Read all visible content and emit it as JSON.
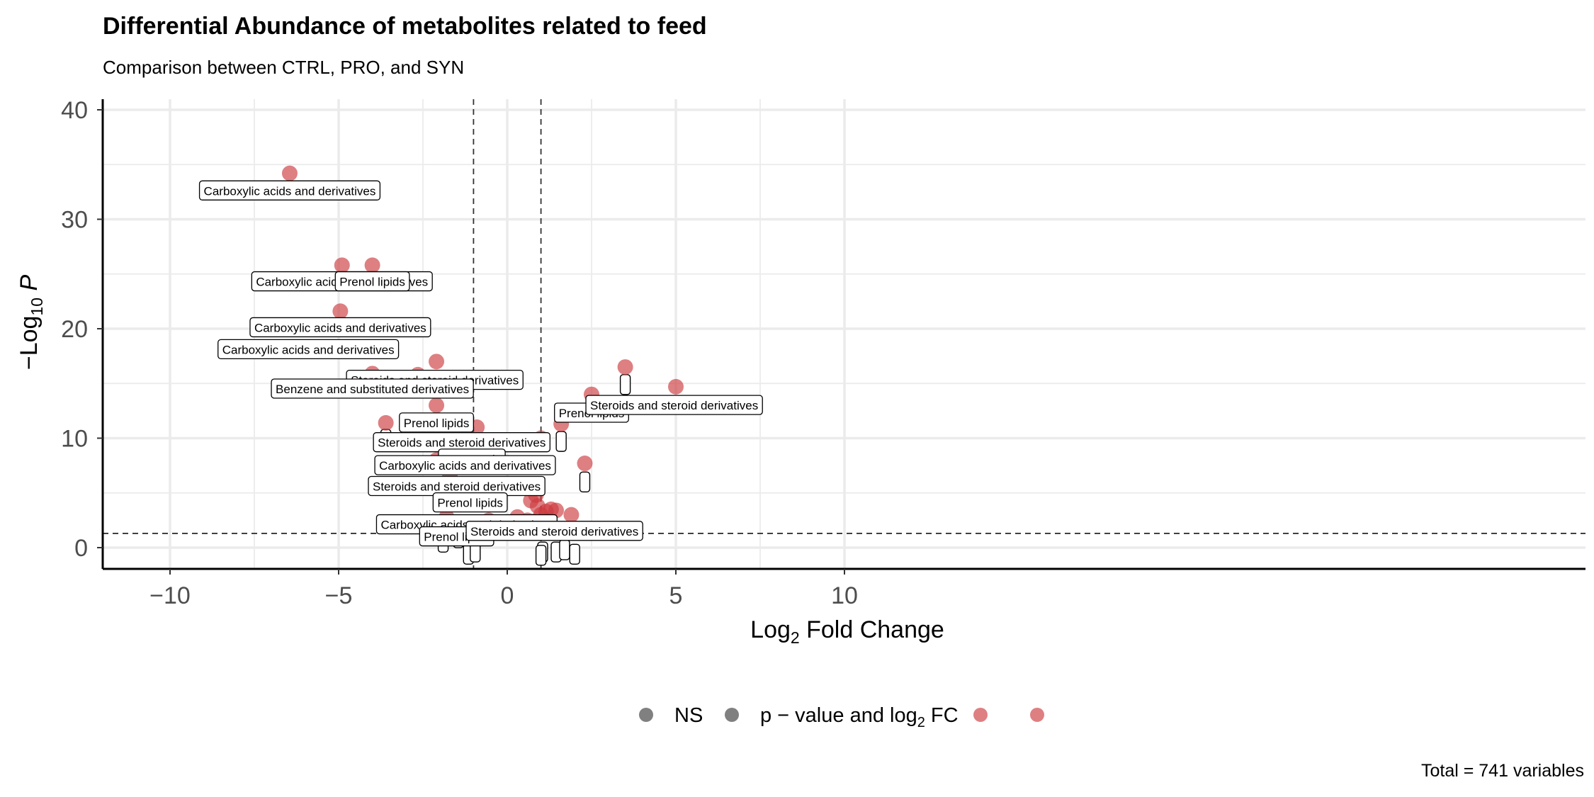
{
  "chart_data": {
    "type": "scatter",
    "title": "Differential Abundance of metabolites related to feed",
    "subtitle": "Comparison between CTRL, PRO, and SYN",
    "xlabel": "Log2 Fold Change",
    "ylabel": "-Log10 P",
    "xlim": [
      -11,
      11
    ],
    "ylim": [
      -2,
      41
    ],
    "x_ticks": [
      "−10",
      "−5",
      "0",
      "5",
      "10"
    ],
    "x_tick_values": [
      -10,
      -5,
      0,
      5,
      10
    ],
    "y_ticks": [
      "0",
      "10",
      "20",
      "30",
      "40"
    ],
    "y_tick_values": [
      0,
      10,
      20,
      30,
      40
    ],
    "grid": true,
    "fc_cutoff": 1,
    "p_cutoff": 1.3,
    "legend_position": "bottom",
    "legend": [
      {
        "label": "NS",
        "color": "#808080"
      },
      {
        "label": "p − value and log2 FC",
        "color": "#808080"
      },
      {
        "label": "",
        "color": "#cd3b3f"
      },
      {
        "label": "",
        "color": "#cd3b3f"
      }
    ],
    "caption": "Total = 741 variables",
    "points": [
      {
        "x": -6.45,
        "y": 34.2
      },
      {
        "x": -4.9,
        "y": 25.8
      },
      {
        "x": -4.0,
        "y": 25.8
      },
      {
        "x": -4.95,
        "y": 21.6
      },
      {
        "x": -4.0,
        "y": 15.9
      },
      {
        "x": -2.1,
        "y": 17.0
      },
      {
        "x": -2.65,
        "y": 15.8
      },
      {
        "x": -2.1,
        "y": 13.0
      },
      {
        "x": -3.6,
        "y": 11.4
      },
      {
        "x": -1.35,
        "y": 11.4
      },
      {
        "x": -0.9,
        "y": 11.0
      },
      {
        "x": -2.1,
        "y": 8.0
      },
      {
        "x": -1.7,
        "y": 6.5
      },
      {
        "x": -1.2,
        "y": 5.5
      },
      {
        "x": -0.95,
        "y": 5.0
      },
      {
        "x": -1.8,
        "y": 2.8
      },
      {
        "x": -0.55,
        "y": 2.5
      },
      {
        "x": -0.45,
        "y": 2.0
      },
      {
        "x": -0.3,
        "y": 1.6
      },
      {
        "x": 3.5,
        "y": 16.5
      },
      {
        "x": 5.0,
        "y": 14.7
      },
      {
        "x": 2.5,
        "y": 14.0
      },
      {
        "x": 1.6,
        "y": 11.3
      },
      {
        "x": 1.0,
        "y": 10.0
      },
      {
        "x": 2.3,
        "y": 7.7
      },
      {
        "x": 0.85,
        "y": 4.8
      },
      {
        "x": 0.7,
        "y": 4.3
      },
      {
        "x": 0.9,
        "y": 3.8
      },
      {
        "x": 1.15,
        "y": 3.3
      },
      {
        "x": 1.3,
        "y": 3.5
      },
      {
        "x": 1.45,
        "y": 3.4
      },
      {
        "x": 1.0,
        "y": 3.0
      },
      {
        "x": 1.9,
        "y": 3.0
      },
      {
        "x": 0.3,
        "y": 2.8
      },
      {
        "x": 0.6,
        "y": 2.5
      },
      {
        "x": 0.55,
        "y": 2.1
      },
      {
        "x": 0.8,
        "y": 2.4
      },
      {
        "x": 1.1,
        "y": 2.6
      },
      {
        "x": 1.25,
        "y": 2.0
      },
      {
        "x": 0.45,
        "y": 1.8
      },
      {
        "x": 0.95,
        "y": 1.6
      }
    ],
    "labels": [
      {
        "text": "Carboxylic acids and derivatives",
        "x": -6.45,
        "y": 32.6
      },
      {
        "text": "Carboxylic acids and derivatives",
        "x": -4.9,
        "y": 24.3
      },
      {
        "text": "Prenol lipids",
        "x": -4.0,
        "y": 24.3
      },
      {
        "text": "Carboxylic acids and derivatives",
        "x": -4.95,
        "y": 20.1
      },
      {
        "text": "Carboxylic acids and derivatives",
        "x": -5.9,
        "y": 18.1
      },
      {
        "text": "Steroids and steroid derivatives",
        "x": -2.15,
        "y": 15.3
      },
      {
        "text": "Benzene and substituted derivatives",
        "x": -4.0,
        "y": 14.5
      },
      {
        "text": "Prenol lipids",
        "x": -2.1,
        "y": 11.4
      },
      {
        "text": "Steroids and steroid derivatives",
        "x": -1.35,
        "y": 9.6
      },
      {
        "text": "Fatty Acyls",
        "x": -1.05,
        "y": 8.1
      },
      {
        "text": "Carboxylic acids and derivatives",
        "x": -1.25,
        "y": 7.5
      },
      {
        "text": "Steroids and steroid derivatives",
        "x": -1.5,
        "y": 5.6
      },
      {
        "text": "Prenol lipids",
        "x": -1.1,
        "y": 4.1
      },
      {
        "text": "Carboxylic acids and derivatives",
        "x": -1.2,
        "y": 2.1
      },
      {
        "text": "Prenol lipids",
        "x": -1.5,
        "y": 1.0
      },
      {
        "text": "Steroids and steroid derivatives",
        "x": 1.4,
        "y": 1.5
      },
      {
        "text": "Prenol lipids",
        "x": 2.5,
        "y": 12.3
      },
      {
        "text": "Steroids and steroid derivatives",
        "x": 4.95,
        "y": 13.0
      }
    ],
    "empty_label_boxes": [
      {
        "x": -3.6,
        "y": 9.9
      },
      {
        "x": 3.5,
        "y": 14.9
      },
      {
        "x": 1.6,
        "y": 9.7
      },
      {
        "x": 2.3,
        "y": 6.0
      },
      {
        "x": -1.45,
        "y": 0.9
      },
      {
        "x": -1.15,
        "y": -0.6
      },
      {
        "x": -0.95,
        "y": -0.4
      },
      {
        "x": -1.9,
        "y": 0.5
      },
      {
        "x": 1.05,
        "y": -0.4
      },
      {
        "x": 1.45,
        "y": -0.4
      },
      {
        "x": 1.7,
        "y": -0.2
      },
      {
        "x": 2.0,
        "y": -0.6
      },
      {
        "x": 1.0,
        "y": -0.7
      }
    ]
  }
}
